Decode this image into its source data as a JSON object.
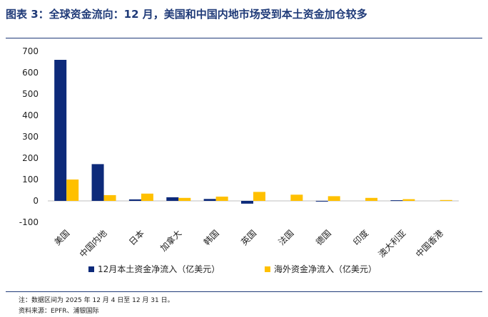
{
  "header": {
    "title": "图表 3：全球资金流向：12 月，美国和中国内地市场受到本土资金加仓较多"
  },
  "footer": {
    "note": "注：数据区间为 2025 年 12 月 4 日至 12 月 31 日。",
    "source": "资料来源：EPFR、浦银国际"
  },
  "colors": {
    "series1": "#0d2a7a",
    "series2": "#ffc000",
    "title": "#1f3a78"
  },
  "chart_data": {
    "type": "bar",
    "categories": [
      "美国",
      "中国内地",
      "日本",
      "加拿大",
      "韩国",
      "英国",
      "法国",
      "德国",
      "印度",
      "澳大利亚",
      "中国香港"
    ],
    "series": [
      {
        "name": "12月本土资金净流入（亿美元）",
        "values": [
          660,
          172,
          7,
          17,
          9,
          -13,
          0,
          -2,
          0,
          3,
          0
        ]
      },
      {
        "name": "海外资金净流入（亿美元）",
        "values": [
          100,
          27,
          34,
          14,
          20,
          42,
          29,
          22,
          14,
          8,
          4
        ]
      }
    ],
    "ylim": [
      -100,
      700
    ],
    "yticks": [
      -100,
      0,
      100,
      200,
      300,
      400,
      500,
      600,
      700
    ],
    "grid": false,
    "legend": "bottom"
  }
}
